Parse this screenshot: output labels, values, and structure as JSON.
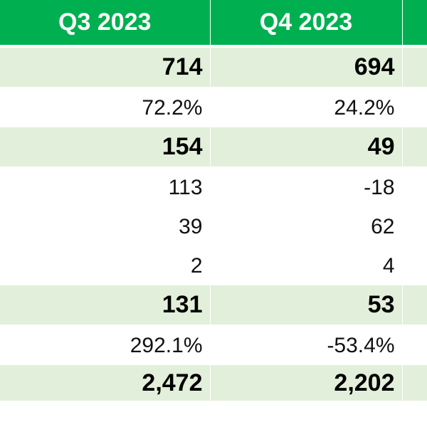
{
  "colors": {
    "header_bg": "#00b050",
    "header_text": "#ffffff",
    "band_bg": "#e2efda",
    "plain_bg": "#ffffff"
  },
  "header": {
    "col1": "Q3 2023",
    "col2": "Q4 2023"
  },
  "rows": [
    {
      "style": "bold",
      "q3": "714",
      "q4": "694"
    },
    {
      "style": "plain",
      "q3": "72.2%",
      "q4": "24.2%"
    },
    {
      "style": "bold",
      "q3": "154",
      "q4": "49"
    },
    {
      "style": "plain",
      "q3": "113",
      "q4": "-18"
    },
    {
      "style": "plain",
      "q3": "39",
      "q4": "62"
    },
    {
      "style": "plain",
      "q3": "2",
      "q4": "4"
    },
    {
      "style": "bold",
      "q3": "131",
      "q4": "53"
    },
    {
      "style": "plain",
      "q3": "292.1%",
      "q4": "-53.4%"
    },
    {
      "style": "bold",
      "q3": "2,472",
      "q4": "2,202"
    }
  ]
}
